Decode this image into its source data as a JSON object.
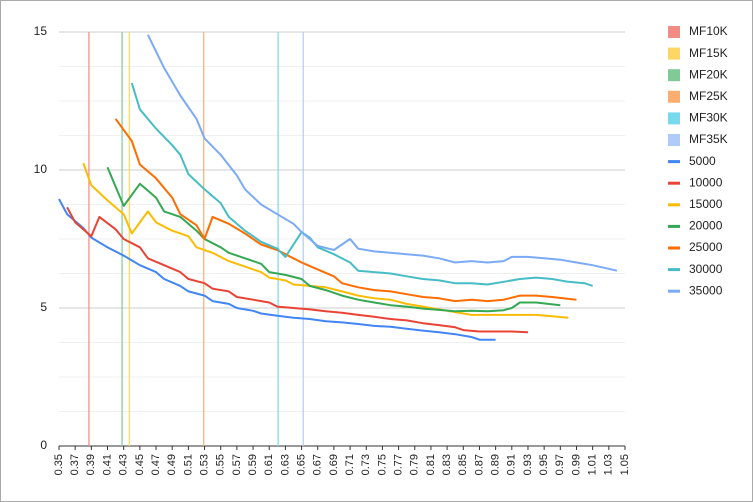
{
  "chart_data": {
    "type": "line",
    "xlim": [
      0.35,
      1.05
    ],
    "xticks": [
      0.35,
      0.37,
      0.39,
      0.41,
      0.43,
      0.45,
      0.47,
      0.49,
      0.51,
      0.53,
      0.55,
      0.57,
      0.59,
      0.61,
      0.63,
      0.65,
      0.67,
      0.69,
      0.71,
      0.73,
      0.75,
      0.77,
      0.79,
      0.81,
      0.83,
      0.85,
      0.87,
      0.89,
      0.91,
      0.93,
      0.95,
      0.97,
      0.99,
      1.01,
      1.03,
      1.05
    ],
    "ylim": [
      0,
      15
    ],
    "yticks": [
      0,
      5,
      10,
      15
    ],
    "grid": true,
    "minor_grid_divisions": 4,
    "legend": "right",
    "reference_lines": [
      {
        "name": "MF10K",
        "color": "#f28b82",
        "x": 0.387
      },
      {
        "name": "MF15K",
        "color": "#fdd663",
        "x": 0.437
      },
      {
        "name": "MF20K",
        "color": "#81c995",
        "x": 0.428
      },
      {
        "name": "MF25K",
        "color": "#fcad70",
        "x": 0.529
      },
      {
        "name": "MF30K",
        "color": "#78d9ec",
        "x": 0.621
      },
      {
        "name": "MF35K",
        "color": "#aecbfa",
        "x": 0.652
      }
    ],
    "series": [
      {
        "name": "5000",
        "color": "#4285f4",
        "x": [
          0.35,
          0.36,
          0.38,
          0.39,
          0.41,
          0.43,
          0.45,
          0.47,
          0.48,
          0.5,
          0.51,
          0.53,
          0.54,
          0.56,
          0.57,
          0.59,
          0.6,
          0.62,
          0.64,
          0.66,
          0.68,
          0.7,
          0.72,
          0.74,
          0.76,
          0.78,
          0.8,
          0.82,
          0.84,
          0.86,
          0.87,
          0.89
        ],
        "values": [
          8.95,
          8.4,
          7.9,
          7.55,
          7.2,
          6.9,
          6.55,
          6.3,
          6.05,
          5.8,
          5.6,
          5.45,
          5.25,
          5.15,
          5.0,
          4.9,
          4.8,
          4.72,
          4.65,
          4.6,
          4.52,
          4.48,
          4.42,
          4.35,
          4.32,
          4.25,
          4.18,
          4.12,
          4.05,
          3.95,
          3.85,
          3.85
        ]
      },
      {
        "name": "10000",
        "color": "#ea4335",
        "x": [
          0.36,
          0.37,
          0.39,
          0.4,
          0.42,
          0.43,
          0.45,
          0.46,
          0.48,
          0.5,
          0.51,
          0.53,
          0.54,
          0.56,
          0.57,
          0.59,
          0.61,
          0.62,
          0.64,
          0.66,
          0.68,
          0.7,
          0.72,
          0.74,
          0.76,
          0.78,
          0.8,
          0.82,
          0.84,
          0.85,
          0.87,
          0.89,
          0.91,
          0.93
        ],
        "values": [
          8.65,
          8.1,
          7.6,
          8.3,
          7.85,
          7.5,
          7.2,
          6.8,
          6.55,
          6.3,
          6.05,
          5.9,
          5.7,
          5.6,
          5.4,
          5.3,
          5.2,
          5.05,
          5.0,
          4.95,
          4.88,
          4.83,
          4.75,
          4.68,
          4.6,
          4.55,
          4.45,
          4.38,
          4.3,
          4.2,
          4.15,
          4.15,
          4.15,
          4.12
        ]
      },
      {
        "name": "15000",
        "color": "#fbbc04",
        "x": [
          0.38,
          0.39,
          0.41,
          0.43,
          0.44,
          0.46,
          0.47,
          0.49,
          0.51,
          0.52,
          0.54,
          0.56,
          0.58,
          0.6,
          0.61,
          0.63,
          0.64,
          0.66,
          0.68,
          0.7,
          0.72,
          0.74,
          0.76,
          0.78,
          0.8,
          0.82,
          0.84,
          0.86,
          0.88,
          0.9,
          0.92,
          0.94,
          0.96,
          0.98
        ],
        "values": [
          10.25,
          9.45,
          8.9,
          8.4,
          7.7,
          8.5,
          8.1,
          7.8,
          7.6,
          7.2,
          7.0,
          6.7,
          6.5,
          6.3,
          6.1,
          6.0,
          5.85,
          5.8,
          5.75,
          5.6,
          5.45,
          5.35,
          5.3,
          5.15,
          5.05,
          4.95,
          4.85,
          4.75,
          4.75,
          4.75,
          4.75,
          4.75,
          4.7,
          4.65
        ]
      },
      {
        "name": "20000",
        "color": "#34a853",
        "x": [
          0.41,
          0.42,
          0.43,
          0.45,
          0.47,
          0.48,
          0.5,
          0.52,
          0.53,
          0.55,
          0.56,
          0.58,
          0.6,
          0.61,
          0.63,
          0.65,
          0.66,
          0.68,
          0.7,
          0.72,
          0.74,
          0.76,
          0.78,
          0.8,
          0.82,
          0.84,
          0.86,
          0.88,
          0.9,
          0.91,
          0.92,
          0.94,
          0.97
        ],
        "values": [
          10.1,
          9.4,
          8.7,
          9.5,
          9.0,
          8.5,
          8.3,
          7.8,
          7.5,
          7.2,
          7.0,
          6.8,
          6.6,
          6.3,
          6.2,
          6.05,
          5.8,
          5.65,
          5.45,
          5.3,
          5.2,
          5.1,
          5.05,
          4.98,
          4.93,
          4.88,
          4.9,
          4.88,
          4.92,
          5.0,
          5.2,
          5.2,
          5.1
        ]
      },
      {
        "name": "25000",
        "color": "#ff6d01",
        "x": [
          0.42,
          0.44,
          0.45,
          0.47,
          0.49,
          0.5,
          0.52,
          0.53,
          0.54,
          0.56,
          0.58,
          0.6,
          0.62,
          0.63,
          0.65,
          0.67,
          0.69,
          0.7,
          0.72,
          0.74,
          0.76,
          0.78,
          0.8,
          0.82,
          0.84,
          0.86,
          0.88,
          0.9,
          0.92,
          0.94,
          0.96,
          0.99
        ],
        "values": [
          11.85,
          11.05,
          10.2,
          9.7,
          9.0,
          8.4,
          8.0,
          7.5,
          8.3,
          8.05,
          7.7,
          7.3,
          7.1,
          6.95,
          6.65,
          6.4,
          6.15,
          5.9,
          5.75,
          5.65,
          5.6,
          5.5,
          5.4,
          5.35,
          5.25,
          5.3,
          5.25,
          5.3,
          5.45,
          5.45,
          5.4,
          5.3
        ]
      },
      {
        "name": "30000",
        "color": "#46bdc6",
        "x": [
          0.44,
          0.45,
          0.47,
          0.49,
          0.5,
          0.51,
          0.53,
          0.55,
          0.56,
          0.58,
          0.6,
          0.62,
          0.63,
          0.65,
          0.66,
          0.67,
          0.69,
          0.71,
          0.72,
          0.74,
          0.76,
          0.78,
          0.8,
          0.82,
          0.84,
          0.86,
          0.88,
          0.9,
          0.92,
          0.94,
          0.96,
          0.98,
          1.0,
          1.01
        ],
        "values": [
          13.15,
          12.2,
          11.5,
          10.9,
          10.55,
          9.85,
          9.3,
          8.8,
          8.3,
          7.8,
          7.4,
          7.15,
          6.85,
          7.75,
          7.55,
          7.2,
          6.95,
          6.65,
          6.35,
          6.3,
          6.25,
          6.15,
          6.05,
          6.0,
          5.9,
          5.9,
          5.85,
          5.95,
          6.05,
          6.1,
          6.05,
          5.95,
          5.9,
          5.8
        ]
      },
      {
        "name": "35000",
        "color": "#7baaf7",
        "x": [
          0.46,
          0.48,
          0.5,
          0.52,
          0.53,
          0.55,
          0.57,
          0.58,
          0.6,
          0.62,
          0.64,
          0.65,
          0.66,
          0.67,
          0.69,
          0.71,
          0.72,
          0.74,
          0.76,
          0.78,
          0.8,
          0.82,
          0.84,
          0.86,
          0.88,
          0.9,
          0.91,
          0.93,
          0.95,
          0.97,
          0.99,
          1.01,
          1.04
        ],
        "values": [
          14.9,
          13.7,
          12.7,
          11.85,
          11.15,
          10.55,
          9.8,
          9.3,
          8.75,
          8.4,
          8.05,
          7.75,
          7.5,
          7.25,
          7.1,
          7.5,
          7.15,
          7.05,
          7.0,
          6.95,
          6.9,
          6.8,
          6.65,
          6.7,
          6.65,
          6.7,
          6.85,
          6.85,
          6.8,
          6.75,
          6.65,
          6.55,
          6.35
        ]
      }
    ]
  }
}
